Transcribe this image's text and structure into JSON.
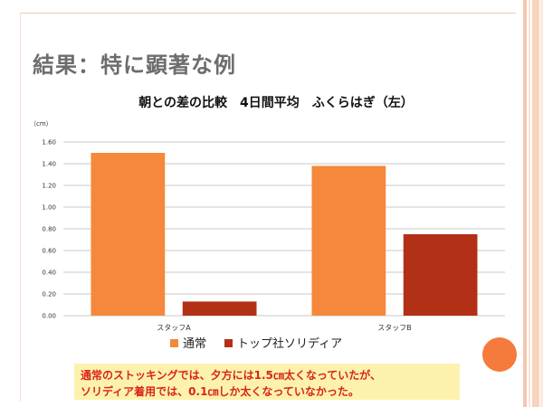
{
  "slide": {
    "title": "結果：特に顕著な例",
    "caption": {
      "line1": "通常のストッキングでは、夕方には1.5㎝太くなっていたが、",
      "line2": "ソリディア着用では、0.1㎝しか太くなっていなかった。",
      "color": "#d8241c",
      "background": "#fcf2ad"
    }
  },
  "chart_data": {
    "type": "bar",
    "title": "朝との差の比較　4日間平均　ふくらはぎ（左）",
    "ylabel": "（cm）",
    "xlabel": "",
    "ylim": [
      0,
      1.6
    ],
    "yticks": [
      "0.00",
      "0.20",
      "0.40",
      "0.60",
      "0.80",
      "1.00",
      "1.20",
      "1.40",
      "1.60"
    ],
    "grid": true,
    "legend_position": "bottom",
    "categories": [
      "スタッフA",
      "スタッフB"
    ],
    "series": [
      {
        "name": "通常",
        "color": "#f5883a",
        "values": [
          1.5,
          1.38
        ]
      },
      {
        "name": "トップ社ソリディア",
        "color": "#b23016",
        "values": [
          0.13,
          0.75
        ]
      }
    ]
  }
}
